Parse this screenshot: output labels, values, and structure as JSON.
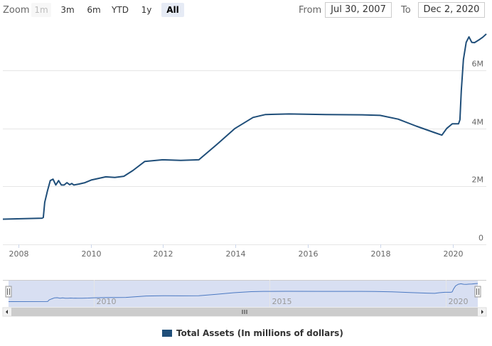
{
  "toolbar": {
    "zoom_label": "Zoom",
    "buttons": [
      {
        "label": "1m",
        "state": "disabled"
      },
      {
        "label": "3m",
        "state": "normal"
      },
      {
        "label": "6m",
        "state": "normal"
      },
      {
        "label": "YTD",
        "state": "normal"
      },
      {
        "label": "1y",
        "state": "normal"
      },
      {
        "label": "All",
        "state": "active"
      }
    ],
    "from_label": "From",
    "from_value": "Jul 30, 2007",
    "to_label": "To",
    "to_value": "Dec 2, 2020"
  },
  "colors": {
    "series": "#1f4e79",
    "grid": "#e6e6e6",
    "navigator_fill": "#c8d2ec",
    "navigator_line": "#4a78c2"
  },
  "chart_data": {
    "type": "line",
    "title": "",
    "xlabel": "",
    "ylabel": "",
    "xlim": [
      "2007-07-30",
      "2020-12-02"
    ],
    "ylim": [
      0,
      7500000
    ],
    "x_ticks": [
      "2008",
      "2010",
      "2012",
      "2014",
      "2016",
      "2018",
      "2020"
    ],
    "y_ticks": [
      "0",
      "2M",
      "4M",
      "6M"
    ],
    "grid": true,
    "legend": "bottom-center",
    "series": [
      {
        "name": "Total Assets (In millions of dollars)",
        "points": [
          [
            "2007-07-30",
            870000
          ],
          [
            "2008-08-27",
            905000
          ],
          [
            "2008-09-10",
            930000
          ],
          [
            "2008-09-24",
            1450000
          ],
          [
            "2008-10-22",
            1850000
          ],
          [
            "2008-11-19",
            2200000
          ],
          [
            "2008-12-17",
            2250000
          ],
          [
            "2009-01-14",
            2050000
          ],
          [
            "2009-02-11",
            2200000
          ],
          [
            "2009-03-11",
            2050000
          ],
          [
            "2009-04-08",
            2050000
          ],
          [
            "2009-05-06",
            2130000
          ],
          [
            "2009-06-03",
            2060000
          ],
          [
            "2009-06-24",
            2100000
          ],
          [
            "2009-07-15",
            2050000
          ],
          [
            "2009-09-02",
            2080000
          ],
          [
            "2009-11-04",
            2130000
          ],
          [
            "2010-01-06",
            2220000
          ],
          [
            "2010-06-02",
            2330000
          ],
          [
            "2010-09-01",
            2310000
          ],
          [
            "2010-12-01",
            2350000
          ],
          [
            "2011-03-02",
            2550000
          ],
          [
            "2011-06-29",
            2860000
          ],
          [
            "2011-12-28",
            2920000
          ],
          [
            "2012-06-27",
            2900000
          ],
          [
            "2012-12-26",
            2920000
          ],
          [
            "2013-06-26",
            3450000
          ],
          [
            "2013-12-25",
            4000000
          ],
          [
            "2014-06-25",
            4380000
          ],
          [
            "2014-10-29",
            4480000
          ],
          [
            "2015-06-24",
            4500000
          ],
          [
            "2016-06-29",
            4480000
          ],
          [
            "2017-06-28",
            4470000
          ],
          [
            "2017-12-27",
            4450000
          ],
          [
            "2018-06-27",
            4320000
          ],
          [
            "2018-12-26",
            4080000
          ],
          [
            "2019-06-26",
            3860000
          ],
          [
            "2019-09-11",
            3770000
          ],
          [
            "2019-10-30",
            4000000
          ],
          [
            "2019-12-25",
            4160000
          ],
          [
            "2020-02-26",
            4160000
          ],
          [
            "2020-03-11",
            4300000
          ],
          [
            "2020-03-25",
            5300000
          ],
          [
            "2020-04-15",
            6380000
          ],
          [
            "2020-05-13",
            6970000
          ],
          [
            "2020-06-10",
            7160000
          ],
          [
            "2020-07-08",
            6970000
          ],
          [
            "2020-08-05",
            6960000
          ],
          [
            "2020-09-02",
            7020000
          ],
          [
            "2020-09-30",
            7080000
          ],
          [
            "2020-10-28",
            7150000
          ],
          [
            "2020-12-02",
            7260000
          ]
        ]
      }
    ],
    "navigator": {
      "x_ticks": [
        "2010",
        "2015",
        "2020"
      ]
    }
  }
}
